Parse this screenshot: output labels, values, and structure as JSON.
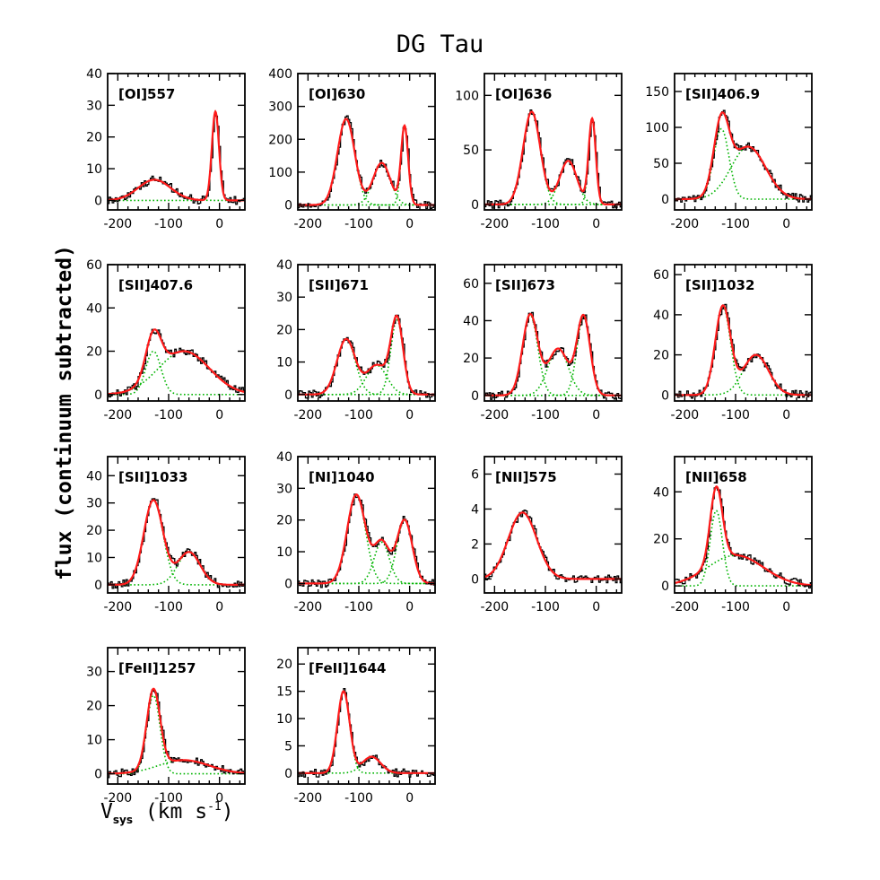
{
  "figure": {
    "title": "DG Tau",
    "ylabel": "flux (continuum subtracted)",
    "xlabel": {
      "main": "V",
      "sub": "sys",
      "unit_open": " (km s",
      "sup": "-1",
      "unit_close": ")"
    }
  },
  "colors": {
    "data": "#000000",
    "fit": "#ff1a1a",
    "component": "#00b400"
  },
  "chart_data": [
    {
      "type": "line",
      "title": "[OI]557",
      "xlim": [
        -220,
        50
      ],
      "ylim": [
        -3,
        40
      ],
      "xticks": [
        -200,
        -100,
        0
      ],
      "yticks": [
        0,
        10,
        20,
        30,
        40
      ],
      "components": [
        {
          "amp": 6.5,
          "center": -128,
          "sigma": 32
        },
        {
          "amp": 28,
          "center": -8,
          "sigma": 7
        }
      ]
    },
    {
      "type": "line",
      "title": "[OI]630",
      "xlim": [
        -220,
        50
      ],
      "ylim": [
        -15,
        400
      ],
      "xticks": [
        -200,
        -100,
        0
      ],
      "yticks": [
        0,
        100,
        200,
        300,
        400
      ],
      "components": [
        {
          "amp": 262,
          "center": -125,
          "sigma": 17
        },
        {
          "amp": 128,
          "center": -55,
          "sigma": 17
        },
        {
          "amp": 238,
          "center": -10,
          "sigma": 7
        }
      ]
    },
    {
      "type": "line",
      "title": "[OI]636",
      "xlim": [
        -220,
        50
      ],
      "ylim": [
        -5,
        120
      ],
      "xticks": [
        -200,
        -100,
        0
      ],
      "yticks": [
        0,
        50,
        100
      ],
      "components": [
        {
          "amp": 85,
          "center": -127,
          "sigma": 17
        },
        {
          "amp": 40,
          "center": -55,
          "sigma": 17
        },
        {
          "amp": 78,
          "center": -8,
          "sigma": 7
        }
      ]
    },
    {
      "type": "line",
      "title": "[SII]406.9",
      "xlim": [
        -220,
        50
      ],
      "ylim": [
        -15,
        175
      ],
      "xticks": [
        -200,
        -100,
        0
      ],
      "yticks": [
        0,
        50,
        100,
        150
      ],
      "components": [
        {
          "amp": 98,
          "center": -128,
          "sigma": 15
        },
        {
          "amp": 73,
          "center": -75,
          "sigma": 34
        }
      ]
    },
    {
      "type": "line",
      "title": "[SII]407.6",
      "xlim": [
        -220,
        50
      ],
      "ylim": [
        -3,
        60
      ],
      "xticks": [
        -200,
        -100,
        0
      ],
      "yticks": [
        0,
        20,
        40,
        60
      ],
      "components": [
        {
          "amp": 20,
          "center": -130,
          "sigma": 15
        },
        {
          "amp": 20,
          "center": -70,
          "sigma": 50
        }
      ]
    },
    {
      "type": "line",
      "title": "[SII]671",
      "xlim": [
        -220,
        50
      ],
      "ylim": [
        -2,
        40
      ],
      "xticks": [
        -200,
        -100,
        0
      ],
      "yticks": [
        0,
        10,
        20,
        30,
        40
      ],
      "components": [
        {
          "amp": 17,
          "center": -125,
          "sigma": 18
        },
        {
          "amp": 9,
          "center": -65,
          "sigma": 20
        },
        {
          "amp": 23,
          "center": -25,
          "sigma": 12
        }
      ]
    },
    {
      "type": "line",
      "title": "[SII]673",
      "xlim": [
        -220,
        50
      ],
      "ylim": [
        -3,
        70
      ],
      "xticks": [
        -200,
        -100,
        0
      ],
      "yticks": [
        0,
        20,
        40,
        60
      ],
      "components": [
        {
          "amp": 43,
          "center": -130,
          "sigma": 15
        },
        {
          "amp": 25,
          "center": -75,
          "sigma": 20
        },
        {
          "amp": 42,
          "center": -25,
          "sigma": 13
        }
      ]
    },
    {
      "type": "line",
      "title": "[SII]1032",
      "xlim": [
        -220,
        50
      ],
      "ylim": [
        -3,
        65
      ],
      "xticks": [
        -200,
        -100,
        0
      ],
      "yticks": [
        0,
        20,
        40,
        60
      ],
      "components": [
        {
          "amp": 44,
          "center": -125,
          "sigma": 15
        },
        {
          "amp": 20,
          "center": -60,
          "sigma": 25
        }
      ]
    },
    {
      "type": "line",
      "title": "[SII]1033",
      "xlim": [
        -220,
        50
      ],
      "ylim": [
        -3,
        47
      ],
      "xticks": [
        -200,
        -100,
        0
      ],
      "yticks": [
        0,
        10,
        20,
        30,
        40
      ],
      "components": [
        {
          "amp": 31,
          "center": -130,
          "sigma": 19
        },
        {
          "amp": 12,
          "center": -60,
          "sigma": 22
        }
      ]
    },
    {
      "type": "line",
      "title": "[NI]1040",
      "xlim": [
        -220,
        50
      ],
      "ylim": [
        -3,
        40
      ],
      "xticks": [
        -200,
        -100,
        0
      ],
      "yticks": [
        0,
        10,
        20,
        30,
        40
      ],
      "components": [
        {
          "amp": 28,
          "center": -105,
          "sigma": 18
        },
        {
          "amp": 13,
          "center": -55,
          "sigma": 15
        },
        {
          "amp": 20,
          "center": -10,
          "sigma": 15
        }
      ]
    },
    {
      "type": "line",
      "title": "[NII]575",
      "xlim": [
        -220,
        50
      ],
      "ylim": [
        -0.8,
        7
      ],
      "xticks": [
        -200,
        -100,
        0
      ],
      "yticks": [
        0,
        2,
        4,
        6
      ],
      "components": [
        {
          "amp": 3.8,
          "center": -145,
          "sigma": 28
        }
      ]
    },
    {
      "type": "line",
      "title": "[NII]658",
      "xlim": [
        -220,
        50
      ],
      "ylim": [
        -3,
        55
      ],
      "xticks": [
        -200,
        -100,
        0
      ],
      "yticks": [
        0,
        20,
        40
      ],
      "components": [
        {
          "amp": 32,
          "center": -138,
          "sigma": 12
        },
        {
          "amp": 13,
          "center": -100,
          "sigma": 55
        }
      ]
    },
    {
      "type": "line",
      "title": "[FeII]1257",
      "xlim": [
        -220,
        50
      ],
      "ylim": [
        -3,
        37
      ],
      "xticks": [
        -200,
        -100,
        0
      ],
      "yticks": [
        0,
        10,
        20,
        30
      ],
      "components": [
        {
          "amp": 23,
          "center": -130,
          "sigma": 13
        },
        {
          "amp": 4,
          "center": -70,
          "sigma": 50
        }
      ]
    },
    {
      "type": "line",
      "title": "[FeII]1644",
      "xlim": [
        -220,
        50
      ],
      "ylim": [
        -2,
        23
      ],
      "xticks": [
        -200,
        -100,
        0
      ],
      "yticks": [
        0,
        5,
        10,
        15,
        20
      ],
      "components": [
        {
          "amp": 15,
          "center": -130,
          "sigma": 12
        },
        {
          "amp": 3,
          "center": -75,
          "sigma": 18
        }
      ]
    }
  ]
}
